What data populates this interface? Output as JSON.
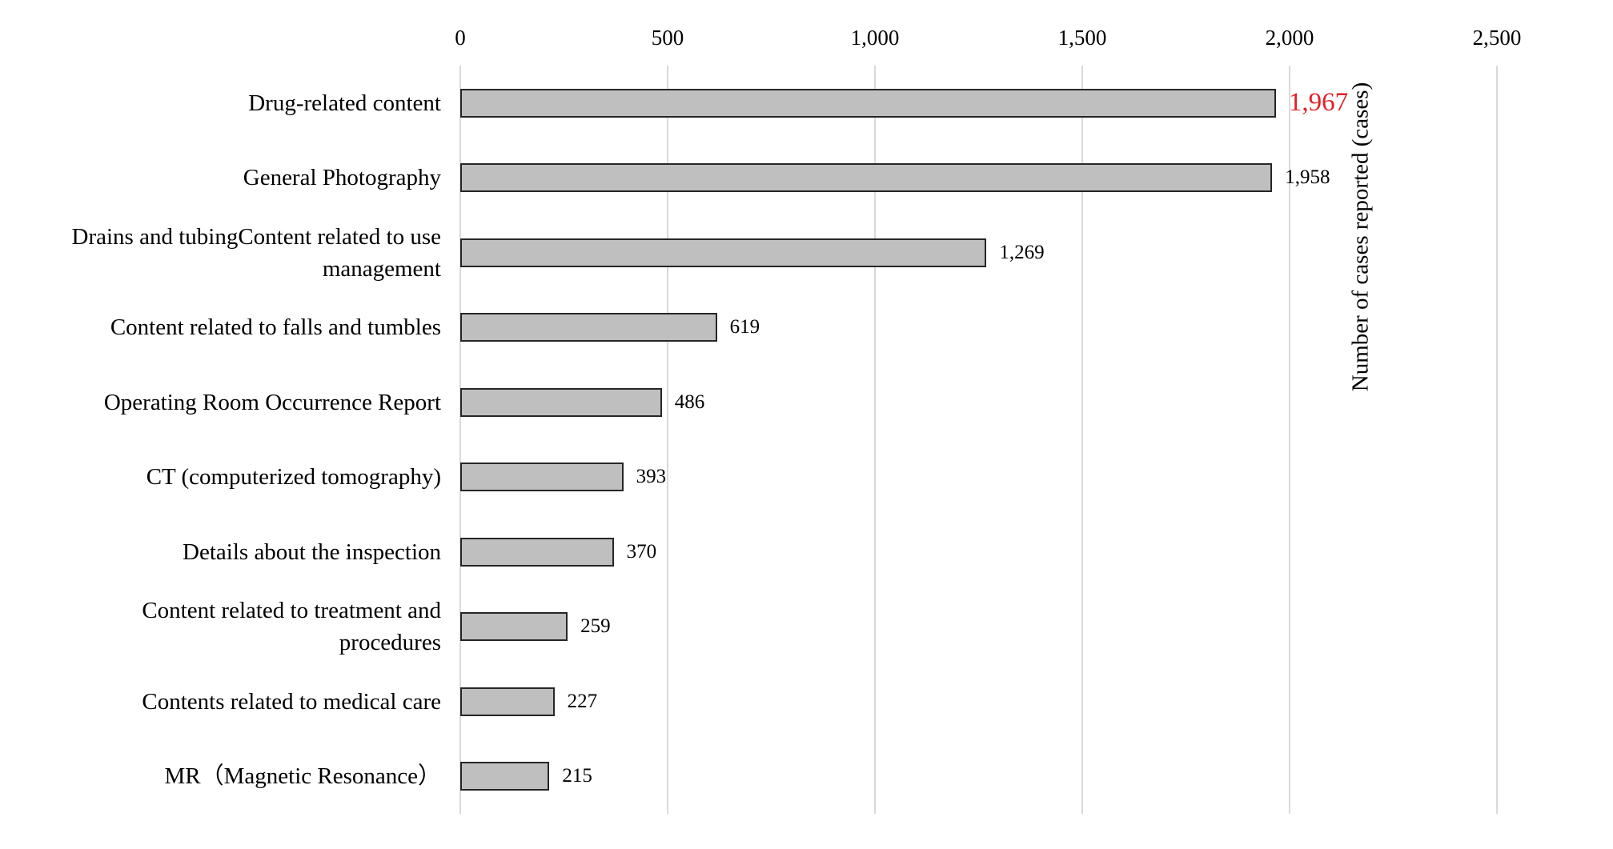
{
  "chart_data": {
    "type": "bar",
    "orientation": "horizontal",
    "title": "",
    "xlabel": "",
    "right_axis_title": "Number of cases reported (cases)",
    "xlim": [
      0,
      2500
    ],
    "grid": true,
    "ticks": [
      {
        "value": 0,
        "label": "0"
      },
      {
        "value": 500,
        "label": "500"
      },
      {
        "value": 1000,
        "label": "1,000"
      },
      {
        "value": 1500,
        "label": "1,500"
      },
      {
        "value": 2000,
        "label": "2,000"
      },
      {
        "value": 2500,
        "label": "2,500"
      }
    ],
    "categories": [
      "Drug-related content",
      "General Photography",
      "Drains and tubingContent related to use management",
      "Content related to falls and tumbles",
      "Operating Room Occurrence Report",
      "CT (computerized tomography)",
      "Details about the inspection",
      "Content related to treatment and procedures",
      "Contents related to medical care",
      "MR（Magnetic Resonance）"
    ],
    "category_label_lines": [
      [
        "Drug-related content"
      ],
      [
        "General Photography"
      ],
      [
        "Drains and tubingContent related to use",
        "management"
      ],
      [
        "Content related to falls and tumbles"
      ],
      [
        "Operating Room Occurrence Report"
      ],
      [
        "CT (computerized tomography)"
      ],
      [
        "Details about the inspection"
      ],
      [
        "Content related to treatment and",
        "procedures"
      ],
      [
        "Contents related to medical care"
      ],
      [
        "MR（Magnetic Resonance）"
      ]
    ],
    "values": [
      1967,
      1958,
      1269,
      619,
      486,
      393,
      370,
      259,
      227,
      215
    ],
    "value_labels": [
      "1,967",
      "1,958",
      "1,269",
      "619",
      "486",
      "393",
      "370",
      "259",
      "227",
      "215"
    ],
    "highlight_index": 0,
    "colors": {
      "bar_fill": "#bfbfbf",
      "bar_border": "#262626",
      "gridline": "#d9d9d9",
      "value_text": "#000000",
      "value_highlight_text": "#e12026"
    }
  }
}
